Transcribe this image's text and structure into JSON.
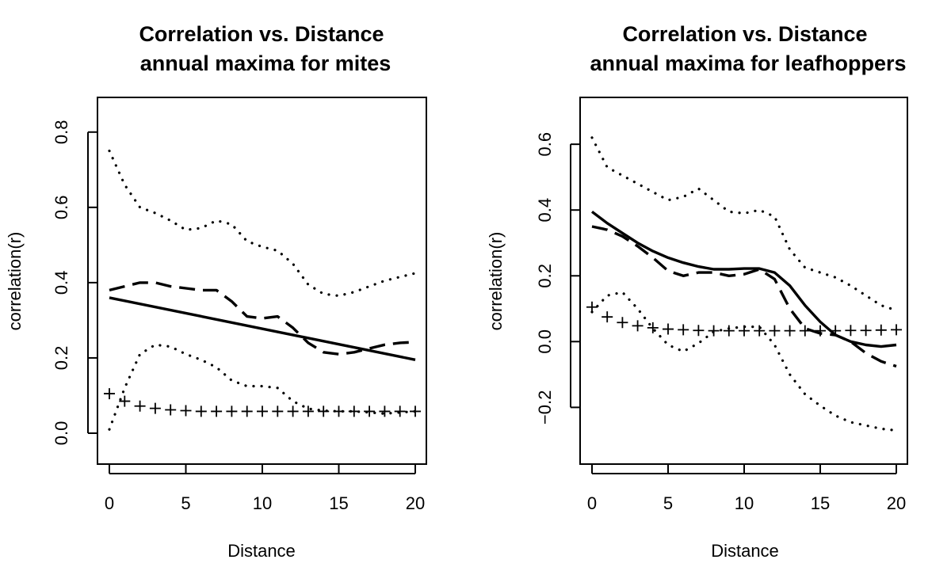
{
  "chart_data": [
    {
      "type": "line",
      "title": "Correlation vs. Distance",
      "subtitle": "annual maxima for mites",
      "xlabel": "Distance",
      "ylabel": "correlation(r)",
      "xlim": [
        0,
        20
      ],
      "ylim": [
        -0.08,
        0.89
      ],
      "xticks": [
        "0",
        "5",
        "10",
        "15",
        "20"
      ],
      "yticks": [
        "0.0",
        "0.2",
        "0.4",
        "0.6",
        "0.8"
      ],
      "grid": false,
      "legend": "none",
      "series": [
        {
          "style": "solid",
          "x": [
            0,
            20
          ],
          "y": [
            0.36,
            0.195
          ]
        },
        {
          "style": "dashed",
          "x": [
            0,
            1,
            2,
            3,
            4,
            5,
            6,
            7,
            8,
            9,
            10,
            11,
            12,
            13,
            14,
            15,
            16,
            17,
            18,
            19,
            20
          ],
          "y": [
            0.38,
            0.39,
            0.4,
            0.4,
            0.39,
            0.385,
            0.38,
            0.38,
            0.35,
            0.31,
            0.305,
            0.31,
            0.28,
            0.24,
            0.215,
            0.21,
            0.215,
            0.225,
            0.235,
            0.24,
            0.242
          ]
        },
        {
          "style": "dotted",
          "x": [
            0,
            1,
            2,
            3,
            4,
            5,
            6,
            7,
            8,
            9,
            10,
            11,
            12,
            13,
            14,
            15,
            16,
            17,
            18,
            19,
            20
          ],
          "y": [
            0.75,
            0.66,
            0.6,
            0.585,
            0.565,
            0.54,
            0.545,
            0.565,
            0.555,
            0.51,
            0.495,
            0.485,
            0.45,
            0.395,
            0.37,
            0.365,
            0.375,
            0.39,
            0.405,
            0.415,
            0.425
          ]
        },
        {
          "style": "dotted",
          "x": [
            0,
            1,
            2,
            3,
            4,
            5,
            6,
            7,
            8,
            9,
            10,
            11,
            12,
            13,
            14,
            15,
            16,
            17,
            18,
            19,
            20
          ],
          "y": [
            0.01,
            0.12,
            0.21,
            0.235,
            0.23,
            0.21,
            0.195,
            0.175,
            0.14,
            0.125,
            0.125,
            0.12,
            0.085,
            0.065,
            0.06,
            0.058,
            0.058,
            0.055,
            0.052,
            0.055,
            0.058
          ]
        },
        {
          "style": "plus",
          "x": [
            0,
            1,
            2,
            3,
            4,
            5,
            6,
            7,
            8,
            9,
            10,
            11,
            12,
            13,
            14,
            15,
            16,
            17,
            18,
            19,
            20
          ],
          "y": [
            0.105,
            0.085,
            0.072,
            0.066,
            0.062,
            0.06,
            0.058,
            0.058,
            0.058,
            0.058,
            0.058,
            0.058,
            0.058,
            0.058,
            0.058,
            0.058,
            0.058,
            0.058,
            0.058,
            0.058,
            0.058
          ]
        }
      ]
    },
    {
      "type": "line",
      "title": "Correlation vs. Distance",
      "subtitle": "annual maxima for leafhoppers",
      "xlabel": "Distance",
      "ylabel": "correlation(r)",
      "xlim": [
        0,
        20
      ],
      "ylim": [
        -0.37,
        0.74
      ],
      "xticks": [
        "0",
        "5",
        "10",
        "15",
        "20"
      ],
      "yticks": [
        "−0.2",
        "0.0",
        "0.2",
        "0.4",
        "0.6"
      ],
      "grid": false,
      "legend": "none",
      "series": [
        {
          "style": "solid",
          "x": [
            0,
            1,
            2,
            3,
            4,
            5,
            6,
            7,
            8,
            9,
            10,
            11,
            12,
            13,
            14,
            15,
            16,
            17,
            18,
            19,
            20
          ],
          "y": [
            0.395,
            0.36,
            0.33,
            0.3,
            0.275,
            0.255,
            0.24,
            0.228,
            0.22,
            0.22,
            0.222,
            0.222,
            0.21,
            0.17,
            0.11,
            0.06,
            0.02,
            0.0,
            -0.01,
            -0.015,
            -0.01
          ]
        },
        {
          "style": "dashed",
          "x": [
            0,
            1,
            2,
            3,
            4,
            5,
            6,
            7,
            8,
            9,
            10,
            11,
            12,
            13,
            14,
            15,
            16,
            17,
            18,
            19,
            20
          ],
          "y": [
            0.35,
            0.34,
            0.32,
            0.29,
            0.255,
            0.215,
            0.2,
            0.21,
            0.21,
            0.2,
            0.205,
            0.22,
            0.19,
            0.1,
            0.04,
            0.025,
            0.02,
            0.0,
            -0.035,
            -0.06,
            -0.075
          ]
        },
        {
          "style": "dotted",
          "x": [
            0,
            1,
            2,
            3,
            4,
            5,
            6,
            7,
            8,
            9,
            10,
            11,
            12,
            13,
            14,
            15,
            16,
            17,
            18,
            19,
            20
          ],
          "y": [
            0.62,
            0.53,
            0.505,
            0.48,
            0.455,
            0.43,
            0.44,
            0.465,
            0.43,
            0.395,
            0.39,
            0.4,
            0.38,
            0.28,
            0.225,
            0.21,
            0.195,
            0.17,
            0.14,
            0.11,
            0.095
          ]
        },
        {
          "style": "dotted",
          "x": [
            0,
            1,
            2,
            3,
            4,
            5,
            6,
            7,
            8,
            9,
            10,
            11,
            12,
            13,
            14,
            15,
            16,
            17,
            18,
            19,
            20
          ],
          "y": [
            0.09,
            0.14,
            0.15,
            0.1,
            0.04,
            -0.01,
            -0.03,
            -0.005,
            0.03,
            0.04,
            0.045,
            0.045,
            -0.01,
            -0.1,
            -0.16,
            -0.195,
            -0.225,
            -0.245,
            -0.255,
            -0.265,
            -0.27
          ]
        },
        {
          "style": "plus",
          "x": [
            0,
            1,
            2,
            3,
            4,
            5,
            6,
            7,
            8,
            9,
            10,
            11,
            12,
            13,
            14,
            15,
            16,
            17,
            18,
            19,
            20
          ],
          "y": [
            0.105,
            0.075,
            0.058,
            0.048,
            0.042,
            0.038,
            0.036,
            0.034,
            0.033,
            0.033,
            0.033,
            0.033,
            0.033,
            0.033,
            0.033,
            0.033,
            0.033,
            0.034,
            0.034,
            0.035,
            0.036
          ]
        }
      ]
    }
  ]
}
